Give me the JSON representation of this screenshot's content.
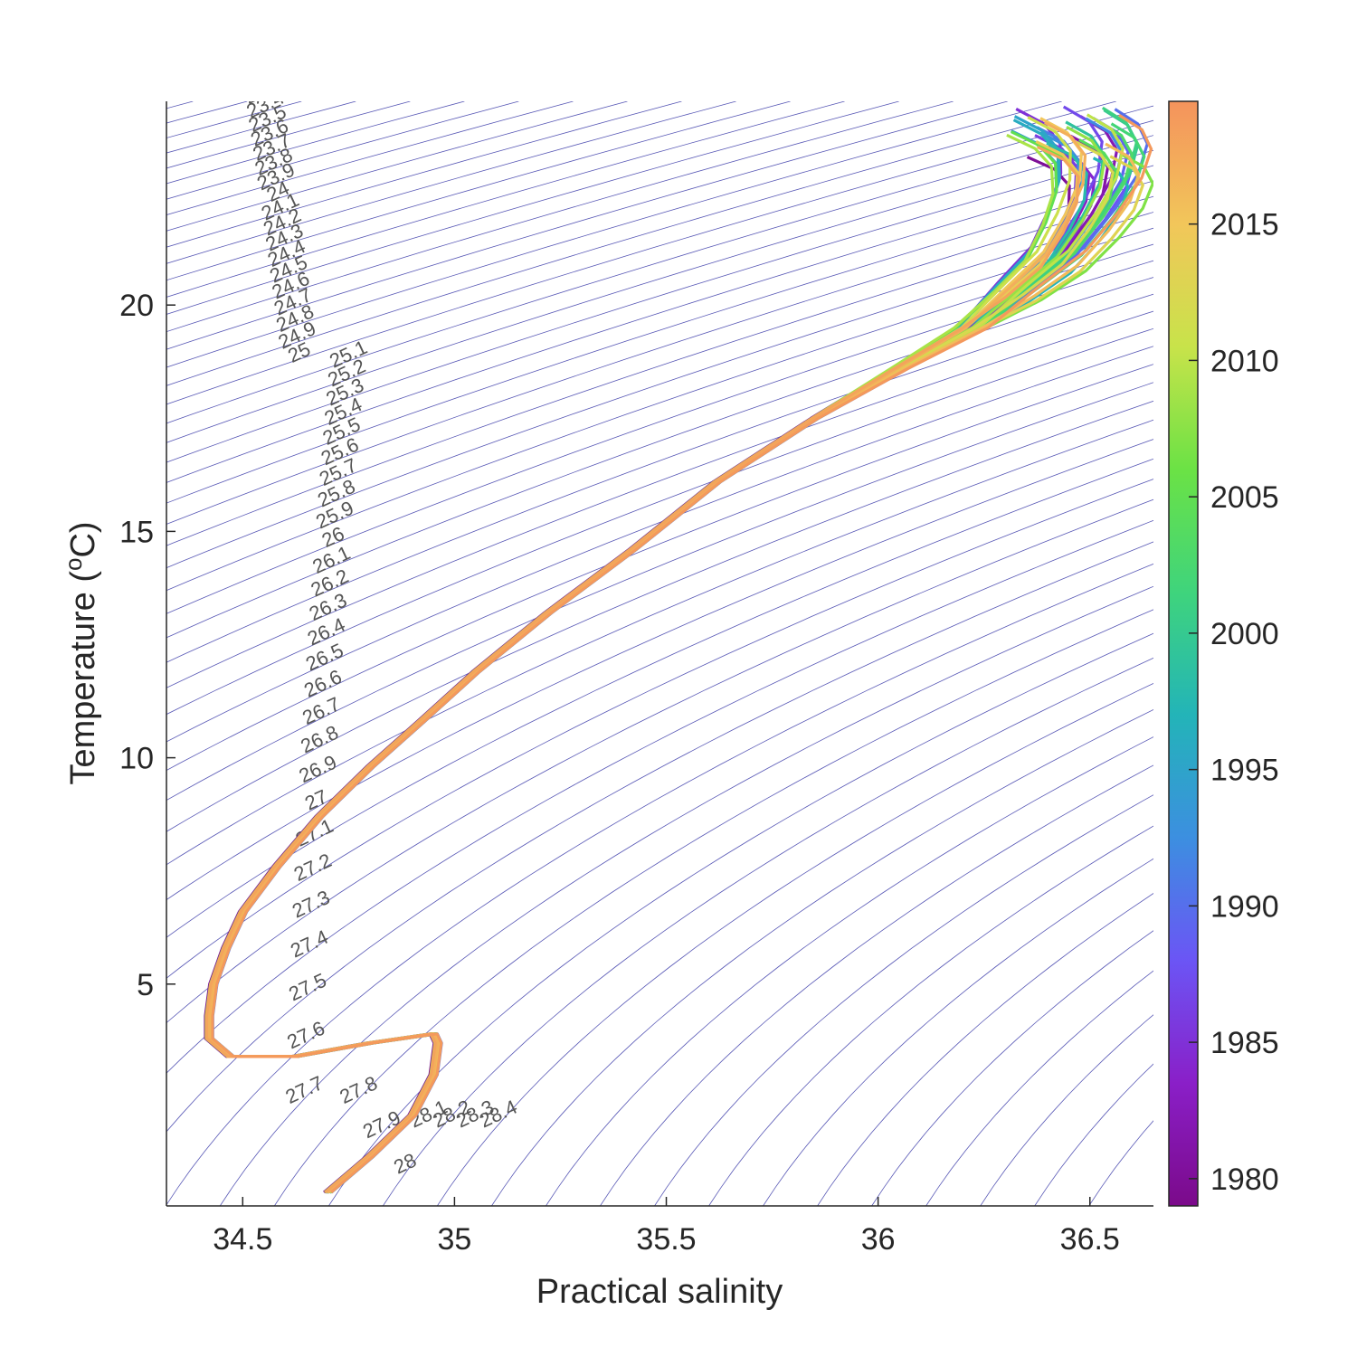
{
  "chart_data": {
    "type": "line",
    "title": "",
    "xlabel": "Practical salinity",
    "ylabel_text": "Temperature (",
    "ylabel_sup": "o",
    "ylabel_end": "C)",
    "xlim": [
      34.32,
      36.65
    ],
    "ylim": [
      0.1,
      24.5
    ],
    "xticks": [
      34.5,
      35,
      35.5,
      36,
      36.5
    ],
    "xtick_labels": [
      "34.5",
      "35",
      "35.5",
      "36",
      "36.5"
    ],
    "yticks": [
      5,
      10,
      15,
      20
    ],
    "ytick_labels": [
      "5",
      "10",
      "15",
      "20"
    ],
    "grid": false,
    "colorbar": {
      "range": [
        1979,
        2019.5
      ],
      "ticks": [
        1980,
        1985,
        1990,
        1995,
        2000,
        2005,
        2010,
        2015
      ],
      "tick_labels": [
        "1980",
        "1985",
        "1990",
        "1995",
        "2000",
        "2005",
        "2010",
        "2015"
      ],
      "colormap": [
        "#7b0a8a",
        "#8a1fc8",
        "#6b55f5",
        "#3c8fe0",
        "#23b4b8",
        "#3fd47c",
        "#6be245",
        "#c8e34a",
        "#f2c65a",
        "#f4935c"
      ]
    },
    "contour_color": "#3a3aa8",
    "contour_labels": [
      "23.2",
      "23.3",
      "23.4",
      "23.5",
      "23.6",
      "23.7",
      "23.8",
      "23.9",
      "24",
      "24.1",
      "24.2",
      "24.3",
      "24.4",
      "24.5",
      "24.6",
      "24.7",
      "24.8",
      "24.9",
      "25",
      "25.1",
      "25.2",
      "25.3",
      "25.4",
      "25.5",
      "25.6",
      "25.7",
      "25.8",
      "25.9",
      "26",
      "26.1",
      "26.2",
      "26.3",
      "26.4",
      "26.5",
      "26.6",
      "26.7",
      "26.8",
      "26.9",
      "27",
      "27.1",
      "27.2",
      "27.3",
      "27.4",
      "27.5",
      "27.6",
      "27.7",
      "27.8",
      "27.9",
      "28",
      "28.1",
      "28.2",
      "28.3",
      "28.4"
    ],
    "mean_profile": {
      "salinity": [
        34.7,
        34.8,
        34.9,
        34.95,
        34.96,
        34.95,
        34.8,
        34.62,
        34.47,
        34.42,
        34.42,
        34.43,
        34.46,
        34.5,
        34.58,
        34.68,
        34.8,
        34.92,
        35.05,
        35.22,
        35.42,
        35.62,
        35.85,
        36.05,
        36.22,
        36.33,
        36.42,
        36.48,
        36.52,
        36.53,
        36.5,
        36.44
      ],
      "temperature": [
        0.4,
        1.2,
        2.1,
        3.0,
        3.7,
        3.9,
        3.7,
        3.4,
        3.4,
        3.8,
        4.3,
        5.0,
        5.8,
        6.6,
        7.6,
        8.7,
        9.8,
        10.8,
        11.9,
        13.2,
        14.6,
        16.1,
        17.5,
        18.6,
        19.5,
        20.3,
        21.0,
        21.8,
        22.5,
        23.1,
        23.5,
        23.8
      ]
    },
    "series": [
      {
        "year": 1980,
        "values": []
      },
      {
        "year": 1985,
        "values": []
      },
      {
        "year": 1990,
        "values": []
      },
      {
        "year": 1995,
        "values": []
      },
      {
        "year": 2000,
        "values": []
      },
      {
        "year": 2005,
        "values": []
      },
      {
        "year": 2010,
        "values": []
      },
      {
        "year": 2015,
        "values": []
      },
      {
        "year": 2019,
        "values": []
      }
    ]
  }
}
